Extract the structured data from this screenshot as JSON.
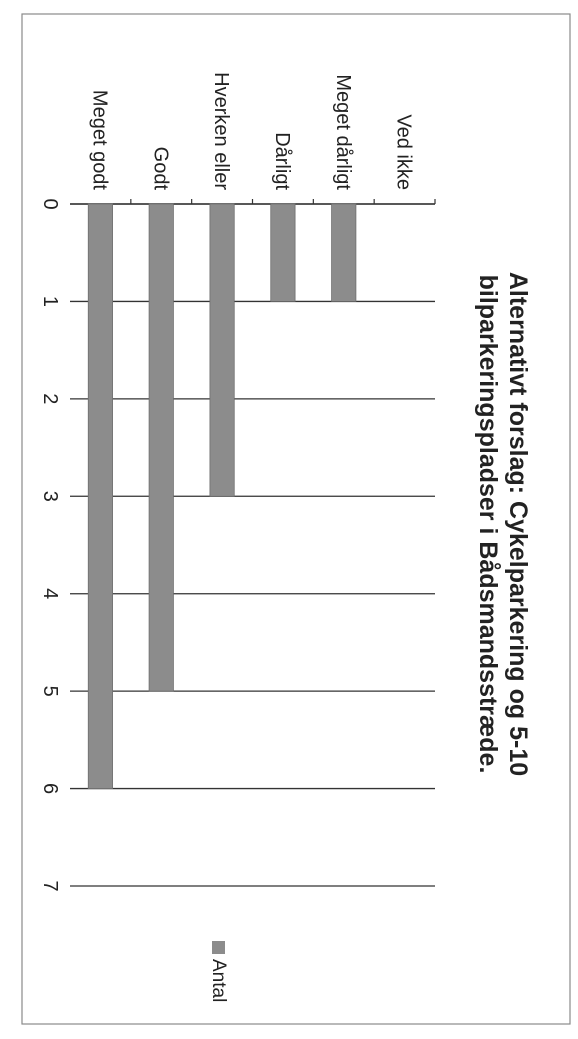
{
  "chart_data": {
    "type": "bar",
    "orientation": "horizontal",
    "rotated": true,
    "title_lines": [
      "Alternativt forslag: Cykelparkering og 5-10",
      "bilparkeringspladser i Bådsmandsstræde."
    ],
    "categories": [
      "Ved ikke",
      "Meget dårligt",
      "Dårligt",
      "Hverken eller",
      "Godt",
      "Meget godt"
    ],
    "series": [
      {
        "name": "Antal",
        "values": [
          0,
          1,
          1,
          3,
          5,
          6
        ]
      }
    ],
    "xlim": [
      0,
      7
    ],
    "ticks": [
      "0",
      "1",
      "2",
      "3",
      "4",
      "5",
      "6",
      "7"
    ],
    "grid": true,
    "legend": "right",
    "colors": {
      "bar": "#8c8c8c",
      "grid": "#333333",
      "frame": "#666666"
    }
  }
}
